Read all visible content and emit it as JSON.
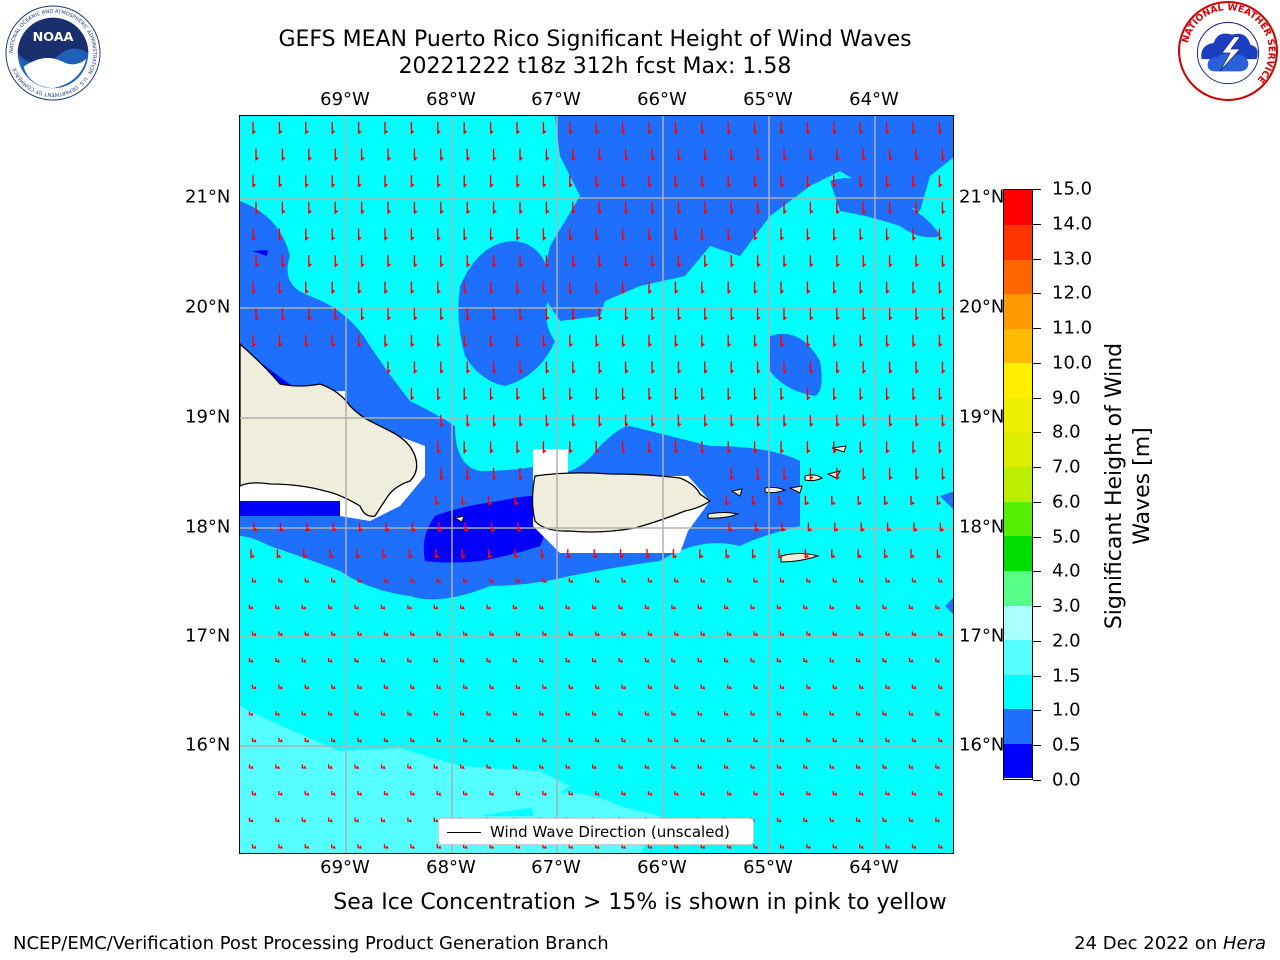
{
  "title": {
    "line1": "GEFS MEAN Puerto Rico Significant Height of Wind Waves",
    "line2": "20221222 t18z 312h fcst   Max: 1.58"
  },
  "map": {
    "longitude_labels": [
      "69°W",
      "68°W",
      "67°W",
      "66°W",
      "65°W",
      "64°W"
    ],
    "latitude_labels": [
      "21°N",
      "20°N",
      "19°N",
      "18°N",
      "17°N",
      "16°N"
    ],
    "legend_label": "Wind Wave Direction (unscaled)",
    "arrow_color": "#ff0000",
    "land_color": "#efeddc"
  },
  "colorbar": {
    "title_line1": "Significant Height of Wind",
    "title_line2": "Waves [m]",
    "tick_labels": [
      "15.0",
      "14.0",
      "13.0",
      "12.0",
      "11.0",
      "10.0",
      "9.0",
      "8.0",
      "7.0",
      "6.0",
      "5.0",
      "4.0",
      "3.0",
      "2.0",
      "1.5",
      "1.0",
      "0.5",
      "0.0"
    ],
    "levels": [
      {
        "range": "0.0-0.5",
        "color": "#0000ff"
      },
      {
        "range": "0.5-1.0",
        "color": "#1f6fff"
      },
      {
        "range": "1.0-1.5",
        "color": "#00ffff"
      },
      {
        "range": "1.5-2.0",
        "color": "#55ffff"
      },
      {
        "range": "2.0-3.0",
        "color": "#aaffff"
      },
      {
        "range": "3.0-4.0",
        "color": "#55ff88"
      },
      {
        "range": "4.0-5.0",
        "color": "#00dd00"
      },
      {
        "range": "5.0-6.0",
        "color": "#55ee00"
      },
      {
        "range": "6.0-7.0",
        "color": "#bbee00"
      },
      {
        "range": "7.0-8.0",
        "color": "#ddee00"
      },
      {
        "range": "8.0-9.0",
        "color": "#eeee00"
      },
      {
        "range": "9.0-10.0",
        "color": "#ffee00"
      },
      {
        "range": "10.0-11.0",
        "color": "#ffbb00"
      },
      {
        "range": "11.0-12.0",
        "color": "#ff9900"
      },
      {
        "range": "12.0-13.0",
        "color": "#ff6600"
      },
      {
        "range": "13.0-14.0",
        "color": "#ff3300"
      },
      {
        "range": "14.0-15.0",
        "color": "#ff0000"
      }
    ]
  },
  "sub_caption": "Sea Ice Concentration > 15% is shown in pink to yellow",
  "footer": {
    "left": "NCEP/EMC/Verification Post Processing Product Generation Branch",
    "right_prefix": "24 Dec 2022 on ",
    "right_host": "Hera"
  },
  "logos": {
    "noaa_text": "NOAA",
    "noaa_ring_text": "NATIONAL OCEANIC AND ATMOSPHERIC ADMINISTRATION · U.S. DEPARTMENT OF COMMERCE",
    "nws_ring_text": "NATIONAL WEATHER SERVICE"
  }
}
